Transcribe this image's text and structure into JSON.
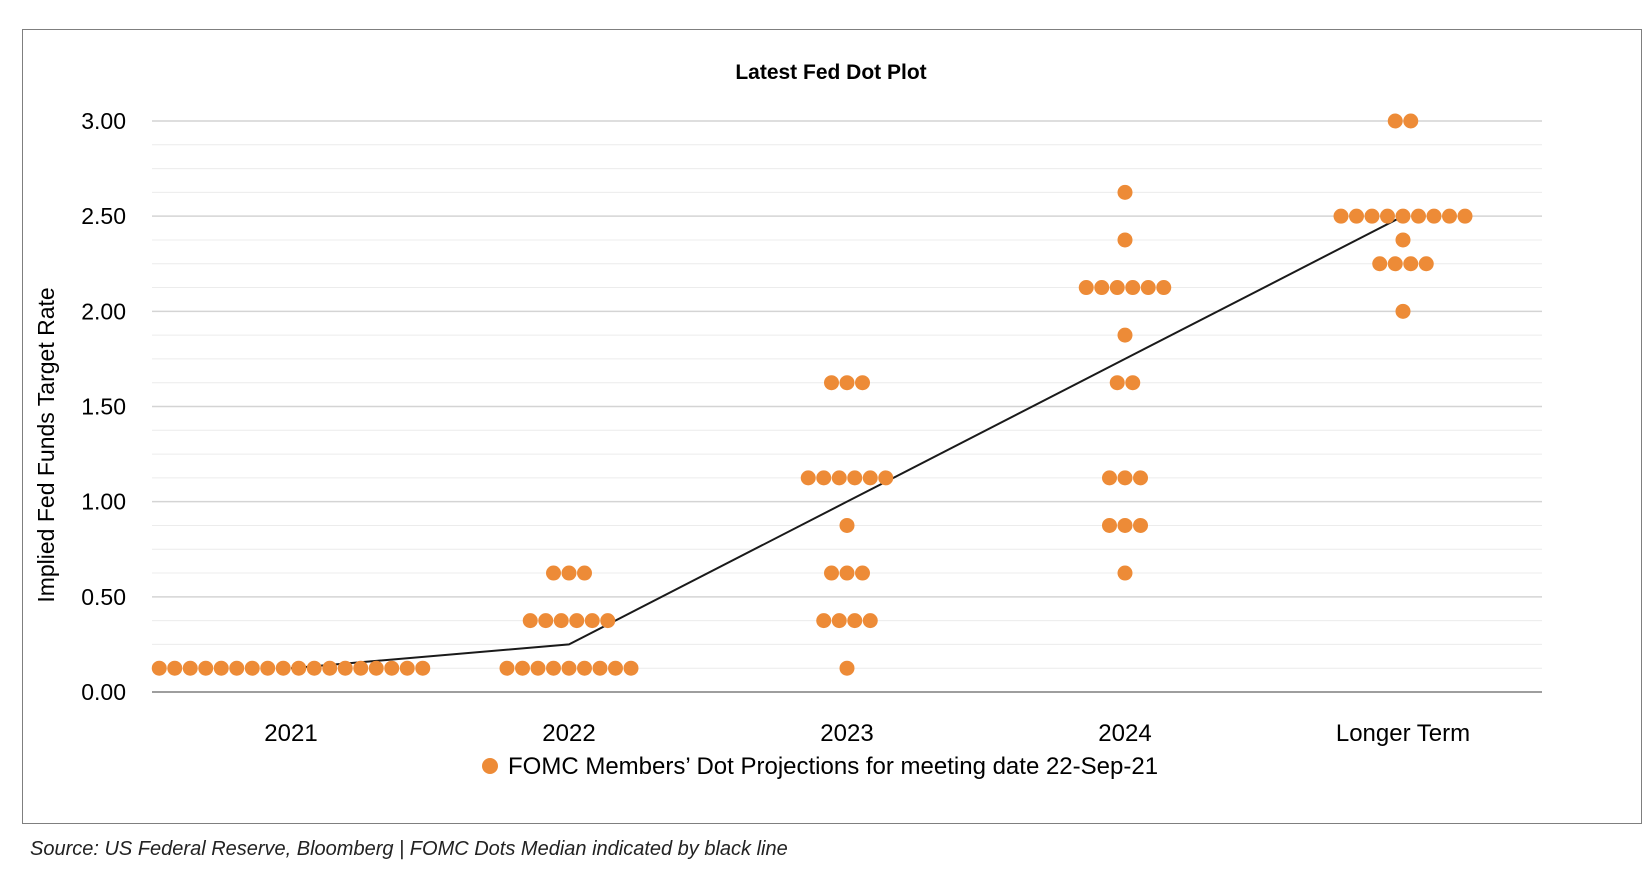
{
  "chart_data": {
    "type": "scatter",
    "title": "Latest Fed Dot Plot",
    "ylabel": "Implied Fed Funds Target Rate",
    "xlabel": "",
    "ylim": [
      0,
      3
    ],
    "y_ticks": [
      "0.00",
      "0.50",
      "1.00",
      "1.50",
      "2.00",
      "2.50",
      "3.00"
    ],
    "categories": [
      "2021",
      "2022",
      "2023",
      "2024",
      "Longer Term"
    ],
    "grid": true,
    "legend_position": "bottom",
    "colors": {
      "dots": "#ed8b37",
      "median_line": "#1a1a1a",
      "grid": "#d9d9d9",
      "axis": "#7f7f7f"
    },
    "series": [
      {
        "name": "FOMC Members’ Dot Projections for meeting date 22-Sep-21",
        "values": [
          [
            {
              "rate": 0.125,
              "count": 18
            }
          ],
          [
            {
              "rate": 0.625,
              "count": 3
            },
            {
              "rate": 0.375,
              "count": 6
            },
            {
              "rate": 0.125,
              "count": 9
            }
          ],
          [
            {
              "rate": 1.625,
              "count": 3
            },
            {
              "rate": 1.125,
              "count": 6
            },
            {
              "rate": 0.875,
              "count": 1
            },
            {
              "rate": 0.625,
              "count": 3
            },
            {
              "rate": 0.375,
              "count": 4
            },
            {
              "rate": 0.125,
              "count": 1
            }
          ],
          [
            {
              "rate": 2.625,
              "count": 1
            },
            {
              "rate": 2.375,
              "count": 1
            },
            {
              "rate": 2.125,
              "count": 6
            },
            {
              "rate": 1.875,
              "count": 1
            },
            {
              "rate": 1.625,
              "count": 2
            },
            {
              "rate": 1.125,
              "count": 3
            },
            {
              "rate": 0.875,
              "count": 3
            },
            {
              "rate": 0.625,
              "count": 1
            }
          ],
          [
            {
              "rate": 3.0,
              "count": 2
            },
            {
              "rate": 2.5,
              "count": 9
            },
            {
              "rate": 2.375,
              "count": 1
            },
            {
              "rate": 2.25,
              "count": 4
            },
            {
              "rate": 2.0,
              "count": 1
            }
          ]
        ]
      }
    ],
    "median": [
      0.125,
      0.25,
      1.0,
      1.75,
      2.5
    ]
  },
  "source_note": "Source: US Federal Reserve, Bloomberg | FOMC Dots Median indicated by black line"
}
